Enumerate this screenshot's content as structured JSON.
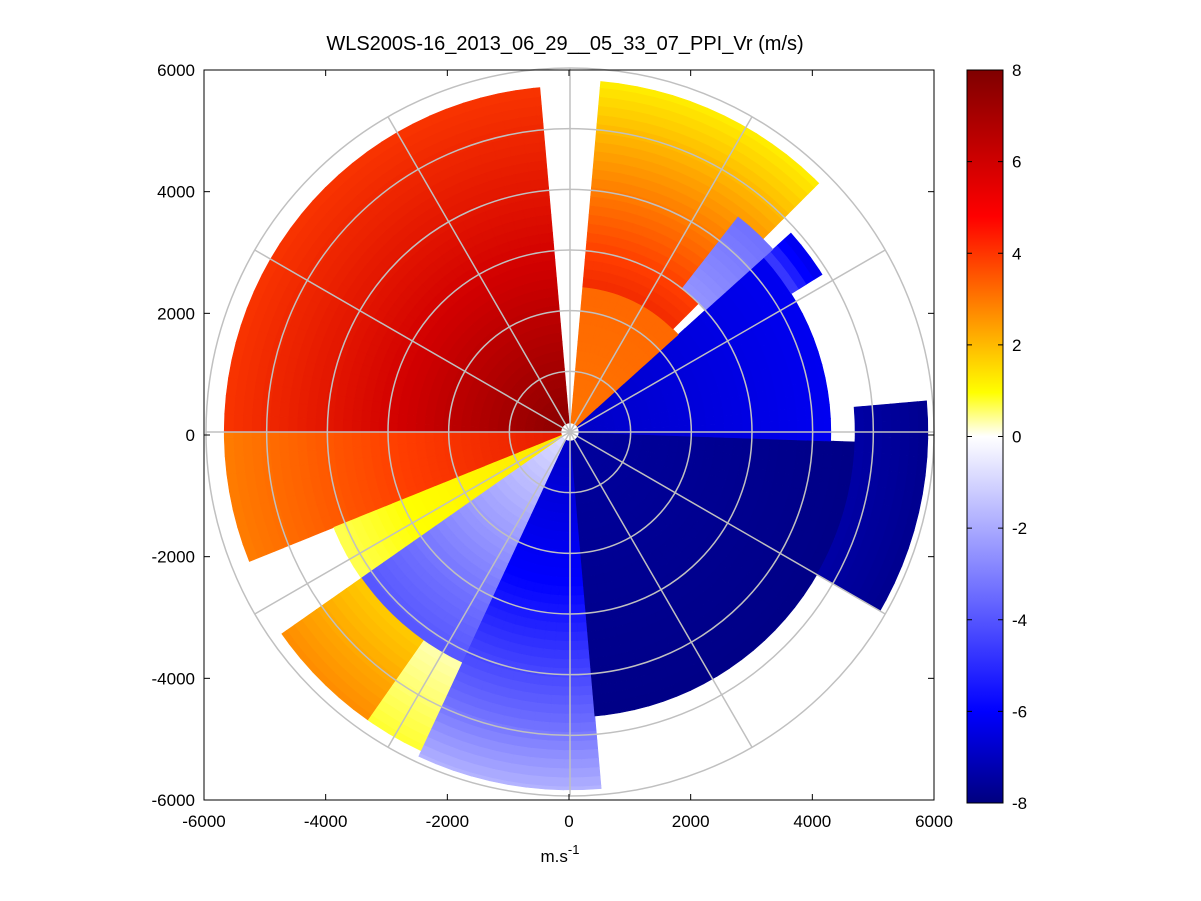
{
  "chart_data": {
    "type": "heatmap",
    "subtype": "polar-ppi",
    "title": "WLS200S-16_2013_06_29__05_33_07_PPI_Vr (m/s)",
    "xlabel": "m.s",
    "xlabel_sup": "-1",
    "ylabel": "",
    "xlim": [
      -6000,
      6000
    ],
    "ylim": [
      -6000,
      6000
    ],
    "x_ticks": [
      -6000,
      -4000,
      -2000,
      0,
      2000,
      4000,
      6000
    ],
    "y_ticks": [
      -6000,
      -4000,
      -2000,
      0,
      2000,
      4000,
      6000
    ],
    "x_tick_labels": [
      "-6000",
      "-4000",
      "-2000",
      "0",
      "2000",
      "4000",
      "6000"
    ],
    "y_tick_labels": [
      "-6000",
      "-4000",
      "-2000",
      "0",
      "2000",
      "4000",
      "6000"
    ],
    "range_rings": [
      1000,
      2000,
      3000,
      4000,
      5000,
      6000
    ],
    "radials_deg": [
      0,
      30,
      60,
      90,
      120,
      150,
      180,
      210,
      240,
      270,
      300,
      330
    ],
    "max_range": 6000,
    "colorbar": {
      "min": -8,
      "max": 8,
      "ticks": [
        8,
        6,
        4,
        2,
        0,
        -2,
        -4,
        -6,
        -8
      ],
      "tick_labels": [
        "8",
        "6",
        "4",
        "2",
        "0",
        "-2",
        "-4",
        "-6",
        "-8"
      ],
      "colors": [
        "#00007f",
        "#0000ff",
        "#ffffff",
        "#ffff00",
        "#ff0000",
        "#7f0000"
      ]
    },
    "sectors": [
      {
        "az_from": 270,
        "az_to": 355,
        "r_from": 150,
        "r_to": 5700,
        "v_near": 7.6,
        "v_far": 4.2
      },
      {
        "az_from": 248,
        "az_to": 270,
        "r_from": 150,
        "r_to": 5700,
        "v_near": 5.0,
        "v_far": 2.8
      },
      {
        "az_from": 235,
        "az_to": 248,
        "r_from": 150,
        "r_to": 4200,
        "v_near": 1.0,
        "v_far": 0.4
      },
      {
        "az_from": 205,
        "az_to": 235,
        "r_from": 150,
        "r_to": 4200,
        "v_near": -0.5,
        "v_far": -2.5
      },
      {
        "az_from": 215,
        "az_to": 235,
        "r_from": 4200,
        "r_to": 5800,
        "v_near": 1.5,
        "v_far": 2.6
      },
      {
        "az_from": 190,
        "az_to": 215,
        "r_from": 4200,
        "r_to": 5800,
        "v_near": 0.2,
        "v_far": 0.5
      },
      {
        "az_from": 175,
        "az_to": 205,
        "r_from": 150,
        "r_to": 5900,
        "v_near": -6.0,
        "v_far": -1.0
      },
      {
        "az_from": 92,
        "az_to": 175,
        "r_from": 150,
        "r_to": 4700,
        "v_near": -7.2,
        "v_far": -7.8
      },
      {
        "az_from": 85,
        "az_to": 120,
        "r_from": 4700,
        "r_to": 5900,
        "v_near": -7.0,
        "v_far": -7.6
      },
      {
        "az_from": 48,
        "az_to": 92,
        "r_from": 150,
        "r_to": 4300,
        "v_near": -6.0,
        "v_far": -4.5
      },
      {
        "az_from": 48,
        "az_to": 58,
        "r_from": 4300,
        "r_to": 4900,
        "v_near": -3.0,
        "v_far": -5.0
      },
      {
        "az_from": 5,
        "az_to": 48,
        "r_from": 150,
        "r_to": 2400,
        "v_near": 3.0,
        "v_far": 3.2
      },
      {
        "az_from": 5,
        "az_to": 45,
        "r_from": 2400,
        "r_to": 5800,
        "v_near": 4.5,
        "v_far": 0.8
      },
      {
        "az_from": 38,
        "az_to": 48,
        "r_from": 3000,
        "r_to": 4500,
        "v_near": -1.5,
        "v_far": -2.0
      }
    ]
  }
}
